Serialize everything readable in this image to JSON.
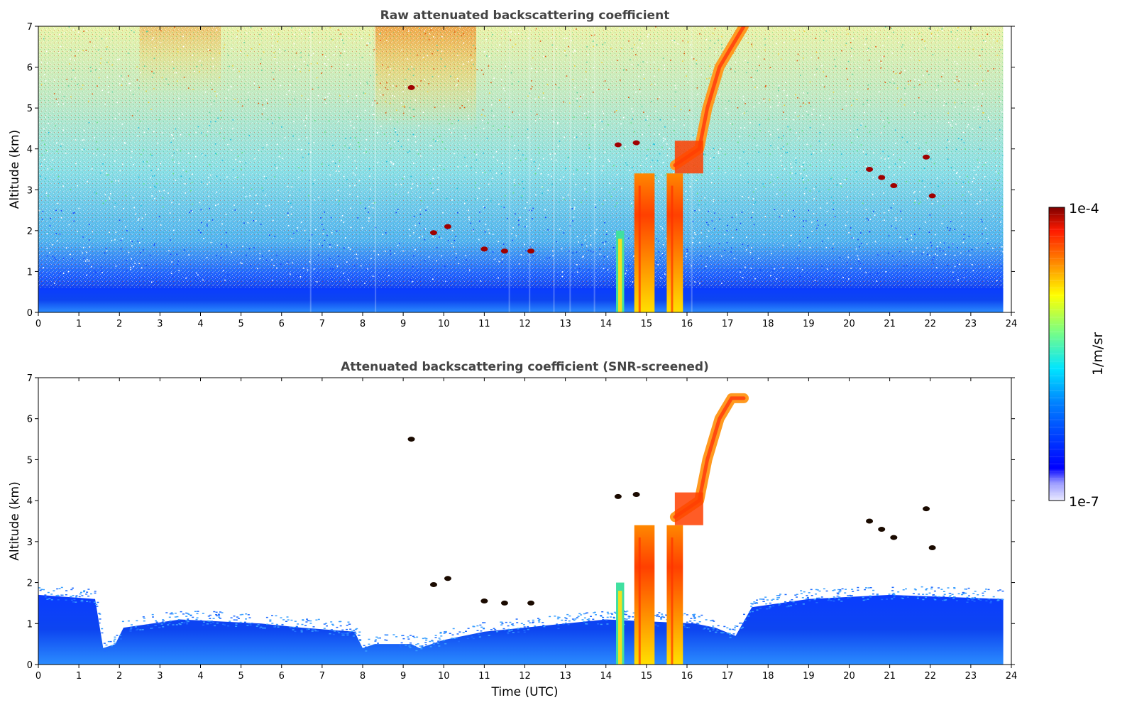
{
  "chart_data": [
    {
      "type": "heatmap",
      "title": "Raw attenuated backscattering coefficient",
      "xlabel": "",
      "ylabel": "Altitude (km)",
      "xlim": [
        0,
        24
      ],
      "ylim": [
        0,
        7
      ],
      "xticks": [
        0,
        1,
        2,
        3,
        4,
        5,
        6,
        7,
        8,
        9,
        10,
        11,
        12,
        13,
        14,
        15,
        16,
        17,
        18,
        19,
        20,
        21,
        22,
        23,
        24
      ],
      "yticks": [
        0,
        1,
        2,
        3,
        4,
        5,
        6,
        7
      ],
      "data_end_time": 23.8,
      "features": {
        "boundary_layer_top_km": 0.6,
        "aerosol_columns": [
          {
            "start": 14.25,
            "end": 14.45,
            "top_km": 2.0
          },
          {
            "start": 14.7,
            "end": 15.2,
            "top_km": 3.4
          },
          {
            "start": 15.5,
            "end": 15.9,
            "top_km": 3.4
          }
        ],
        "rising_layer": [
          [
            15.7,
            3.6
          ],
          [
            16.0,
            3.8
          ],
          [
            16.3,
            4.0
          ],
          [
            16.5,
            5.0
          ],
          [
            16.8,
            6.0
          ],
          [
            17.1,
            6.5
          ],
          [
            17.4,
            7.0
          ]
        ],
        "cloud_patches": [
          {
            "time": 9.2,
            "alt_km": 5.5
          },
          {
            "time": 9.75,
            "alt_km": 1.95
          },
          {
            "time": 10.1,
            "alt_km": 2.1
          },
          {
            "time": 11.0,
            "alt_km": 1.55
          },
          {
            "time": 11.5,
            "alt_km": 1.5
          },
          {
            "time": 12.15,
            "alt_km": 1.5
          },
          {
            "time": 14.3,
            "alt_km": 4.1
          },
          {
            "time": 14.75,
            "alt_km": 4.15
          },
          {
            "time": 20.5,
            "alt_km": 3.5
          },
          {
            "time": 20.8,
            "alt_km": 3.3
          },
          {
            "time": 21.1,
            "alt_km": 3.1
          },
          {
            "time": 21.9,
            "alt_km": 3.8
          },
          {
            "time": 22.05,
            "alt_km": 2.85
          }
        ]
      }
    },
    {
      "type": "heatmap",
      "title": "Attenuated backscattering coefficient (SNR-screened)",
      "xlabel": "Time (UTC)",
      "ylabel": "Altitude (km)",
      "xlim": [
        0,
        24
      ],
      "ylim": [
        0,
        7
      ],
      "xticks": [
        0,
        1,
        2,
        3,
        4,
        5,
        6,
        7,
        8,
        9,
        10,
        11,
        12,
        13,
        14,
        15,
        16,
        17,
        18,
        19,
        20,
        21,
        22,
        23,
        24
      ],
      "yticks": [
        0,
        1,
        2,
        3,
        4,
        5,
        6,
        7
      ],
      "data_end_time": 23.8,
      "features": {
        "screened_boundary_layer_top_km": [
          [
            0,
            1.7
          ],
          [
            1.4,
            1.6
          ],
          [
            1.6,
            0.4
          ],
          [
            1.9,
            0.5
          ],
          [
            2.1,
            0.9
          ],
          [
            3.5,
            1.1
          ],
          [
            5.5,
            1.0
          ],
          [
            6.5,
            0.9
          ],
          [
            7.8,
            0.8
          ],
          [
            8.0,
            0.4
          ],
          [
            8.3,
            0.5
          ],
          [
            9.2,
            0.5
          ],
          [
            9.4,
            0.4
          ],
          [
            10.0,
            0.6
          ],
          [
            11.0,
            0.8
          ],
          [
            13.0,
            1.0
          ],
          [
            14.0,
            1.1
          ],
          [
            16.2,
            1.0
          ],
          [
            16.7,
            0.9
          ],
          [
            17.2,
            0.7
          ],
          [
            17.6,
            1.4
          ],
          [
            19.0,
            1.6
          ],
          [
            21.0,
            1.7
          ],
          [
            23.8,
            1.6
          ]
        ]
      }
    }
  ],
  "colorbar": {
    "max_label": "1e-4",
    "min_label": "1e-7",
    "unit_label": "1/m/sr"
  },
  "colors": {
    "jet_dark_red": "#7f0000",
    "jet_red": "#ff2000",
    "jet_yellow": "#ffff00",
    "jet_cyan": "#00e5ff",
    "jet_blue": "#0000ff",
    "jet_dark_blue": "#00007f",
    "low_light": "#dcdcff"
  }
}
